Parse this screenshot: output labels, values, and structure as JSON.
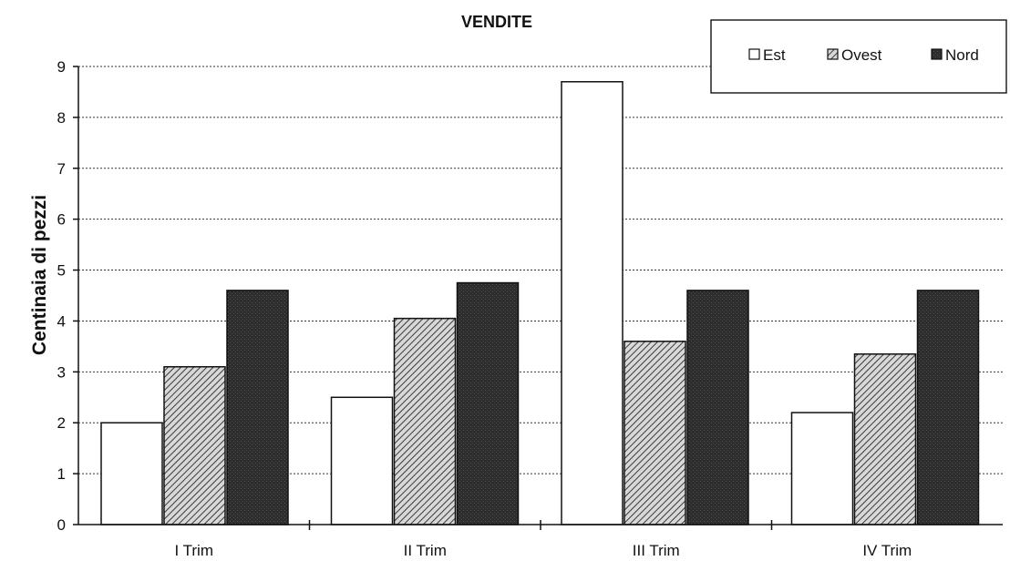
{
  "chart_data": {
    "type": "bar",
    "title": "VENDITE",
    "xlabel": "",
    "ylabel": "Centinaia di pezzi",
    "categories": [
      "I Trim",
      "II Trim",
      "III Trim",
      "IV Trim"
    ],
    "series": [
      {
        "name": "Est",
        "values": [
          2.0,
          2.5,
          8.7,
          2.2
        ]
      },
      {
        "name": "Ovest",
        "values": [
          3.1,
          4.05,
          3.6,
          3.35
        ]
      },
      {
        "name": "Nord",
        "values": [
          4.6,
          4.75,
          4.6,
          4.6
        ]
      }
    ],
    "ylim": [
      0,
      9
    ],
    "yticks": [
      "0",
      "1",
      "2",
      "3",
      "4",
      "5",
      "6",
      "7",
      "8",
      "9"
    ],
    "grid": true,
    "legend_position": "top-right",
    "series_colors": {
      "Est": "#ffffff",
      "Ovest": "#9a9a9a",
      "Nord": "#2b2b2b"
    }
  }
}
